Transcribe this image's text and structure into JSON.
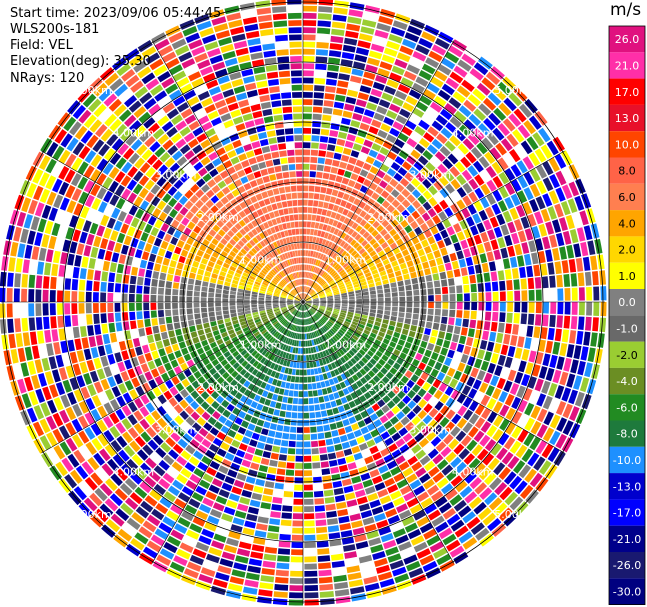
{
  "header": {
    "start_time": "Start time: 2023/09/06 05:44:45",
    "instrument": "WLS200s-181",
    "field": "Field: VEL",
    "elevation": "Elevation(deg): 35.30",
    "nrays": "NRays: 120"
  },
  "colorbar": {
    "unit": "m/s",
    "labels": [
      "26.0",
      "21.0",
      "17.0",
      "13.0",
      "10.0",
      "8.0",
      "6.0",
      "4.0",
      "2.0",
      "1.0",
      "0.0",
      "-1.0",
      "-2.0",
      "-4.0",
      "-6.0",
      "-8.0",
      "-10.0",
      "-13.0",
      "-17.0",
      "-21.0",
      "-26.0",
      "-30.0"
    ],
    "colors": [
      "#e0117f",
      "#ff2fa8",
      "#ff0000",
      "#e8102a",
      "#ff4500",
      "#ff6347",
      "#ff7f50",
      "#ffa500",
      "#ffd700",
      "#ffff00",
      "#808080",
      "#696969",
      "#9acd32",
      "#6b8e23",
      "#228b22",
      "#1e7a3c",
      "#1e90ff",
      "#0000cd",
      "#0000ff",
      "#00008b",
      "#191970",
      "#000080"
    ]
  },
  "chart_data": {
    "type": "heatmap",
    "projection": "polar (PPI)",
    "field": "VEL",
    "unit": "m/s",
    "n_rays": 120,
    "elevation_deg": 35.3,
    "range_ring_labels": [
      "1.00km",
      "2.00km",
      "3.00km",
      "4.00km",
      "5.00km"
    ],
    "color_scale_ticks": [
      26.0,
      21.0,
      17.0,
      13.0,
      10.0,
      8.0,
      6.0,
      4.0,
      2.0,
      1.0,
      0.0,
      -1.0,
      -2.0,
      -4.0,
      -6.0,
      -8.0,
      -10.0,
      -13.0,
      -17.0,
      -21.0,
      -26.0,
      -30.0
    ],
    "valid_data_radius_km": 2.5,
    "pattern": "positive velocities (yellow/orange) to the north, negative velocities (green) to the south, noise beyond ~2.5 km"
  }
}
